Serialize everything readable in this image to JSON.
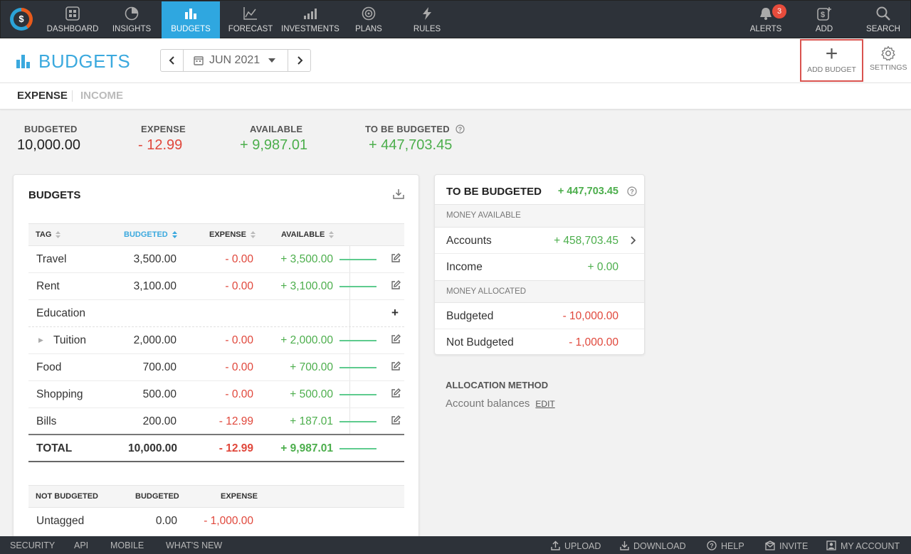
{
  "nav": {
    "items": [
      {
        "label": "DASHBOARD",
        "icon": "dashboard-icon"
      },
      {
        "label": "INSIGHTS",
        "icon": "pie-chart-icon"
      },
      {
        "label": "BUDGETS",
        "icon": "bar-chart-icon",
        "active": true
      },
      {
        "label": "FORECAST",
        "icon": "line-chart-icon"
      },
      {
        "label": "INVESTMENTS",
        "icon": "investments-icon"
      },
      {
        "label": "PLANS",
        "icon": "target-icon"
      },
      {
        "label": "RULES",
        "icon": "lightning-icon"
      }
    ],
    "right": [
      {
        "label": "ALERTS",
        "icon": "bell-icon",
        "badge": "3"
      },
      {
        "label": "ADD",
        "icon": "add-dollar-icon"
      },
      {
        "label": "SEARCH",
        "icon": "search-icon"
      }
    ]
  },
  "header": {
    "title": "BUDGETS",
    "date": "JUN 2021",
    "add_budget_label": "ADD BUDGET",
    "settings_label": "SETTINGS"
  },
  "tabs": {
    "expense": "EXPENSE",
    "income": "INCOME"
  },
  "summary": {
    "budgeted_label": "BUDGETED",
    "budgeted_value": "10,000.00",
    "expense_label": "EXPENSE",
    "expense_value": "- 12.99",
    "available_label": "AVAILABLE",
    "available_value": "+ 9,987.01",
    "tbb_label": "TO BE BUDGETED",
    "tbb_value": "+ 447,703.45"
  },
  "budgets": {
    "title": "BUDGETS",
    "columns": {
      "tag": "TAG",
      "budgeted": "BUDGETED",
      "expense": "EXPENSE",
      "available": "AVAILABLE"
    },
    "rows": [
      {
        "tag": "Travel",
        "budgeted": "3,500.00",
        "expense": "- 0.00",
        "available": "+ 3,500.00"
      },
      {
        "tag": "Rent",
        "budgeted": "3,100.00",
        "expense": "- 0.00",
        "available": "+ 3,100.00"
      },
      {
        "tag": "Education",
        "budgeted": "",
        "expense": "",
        "available": ""
      },
      {
        "tag": "Tuition",
        "budgeted": "2,000.00",
        "expense": "- 0.00",
        "available": "+ 2,000.00"
      },
      {
        "tag": "Food",
        "budgeted": "700.00",
        "expense": "- 0.00",
        "available": "+ 700.00"
      },
      {
        "tag": "Shopping",
        "budgeted": "500.00",
        "expense": "- 0.00",
        "available": "+ 500.00"
      },
      {
        "tag": "Bills",
        "budgeted": "200.00",
        "expense": "- 12.99",
        "available": "+ 187.01"
      }
    ],
    "total": {
      "tag": "TOTAL",
      "budgeted": "10,000.00",
      "expense": "- 12.99",
      "available": "+ 9,987.01"
    },
    "not_budgeted": {
      "columns": {
        "tag": "NOT BUDGETED",
        "budgeted": "BUDGETED",
        "expense": "EXPENSE"
      },
      "rows": [
        {
          "tag": "Untagged",
          "budgeted": "0.00",
          "expense": "- 1,000.00"
        }
      ]
    }
  },
  "tbb_card": {
    "title": "TO BE BUDGETED",
    "value": "+ 447,703.45",
    "money_available": "MONEY AVAILABLE",
    "accounts_label": "Accounts",
    "accounts_value": "+ 458,703.45",
    "income_label": "Income",
    "income_value": "+ 0.00",
    "money_allocated": "MONEY ALLOCATED",
    "budgeted_label": "Budgeted",
    "budgeted_value": "- 10,000.00",
    "not_budgeted_label": "Not Budgeted",
    "not_budgeted_value": "- 1,000.00"
  },
  "allocation": {
    "label": "ALLOCATION METHOD",
    "value": "Account balances",
    "edit": "EDIT"
  },
  "footer": {
    "left": [
      "SECURITY",
      "API",
      "MOBILE",
      "WHAT'S NEW"
    ],
    "upload": "UPLOAD",
    "download": "DOWNLOAD",
    "help": "HELP",
    "invite": "INVITE",
    "account": "MY ACCOUNT"
  },
  "colors": {
    "accent": "#3ba9de",
    "nav_bg": "#2d3239",
    "negative": "#e0473b",
    "positive": "#4cae4c",
    "highlight_border": "#d9534f"
  }
}
